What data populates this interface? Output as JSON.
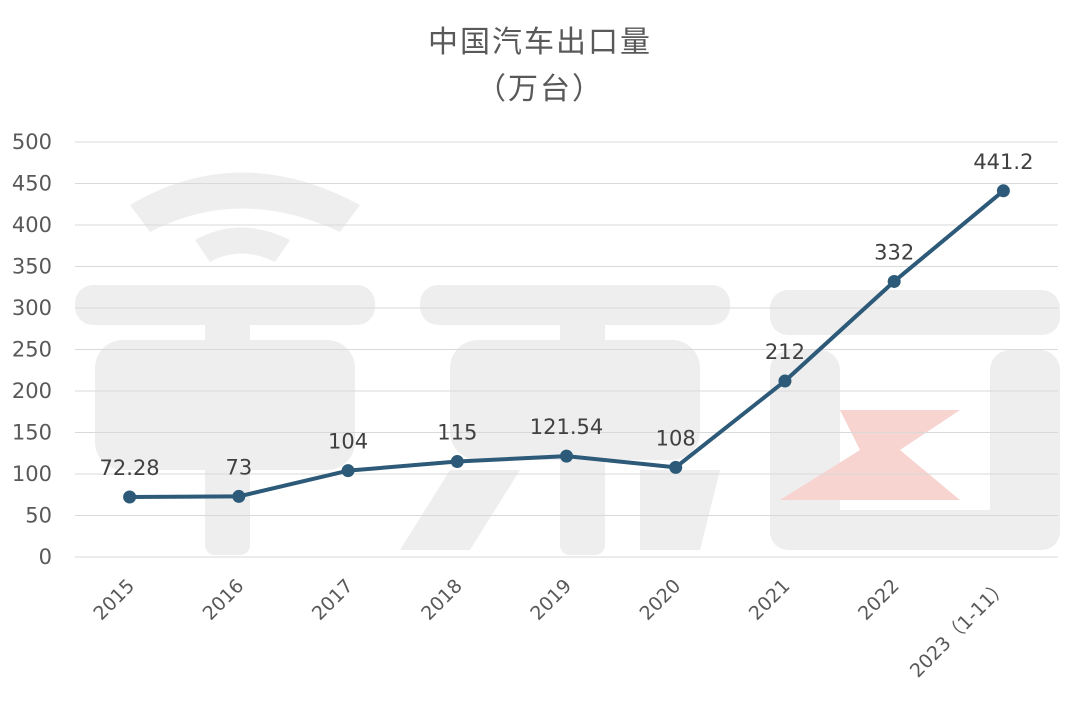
{
  "chart_data": {
    "type": "line",
    "title": "中国汽车出口量",
    "subtitle": "（万台）",
    "categories": [
      "2015",
      "2016",
      "2017",
      "2018",
      "2019",
      "2020",
      "2021",
      "2022",
      "2023（1-11）"
    ],
    "series": [
      {
        "values": [
          72.28,
          73,
          104,
          115,
          121.54,
          108,
          212,
          332,
          441.2
        ],
        "labels": [
          "72.28",
          "73",
          "104",
          "115",
          "121.54",
          "108",
          "212",
          "332",
          "441.2"
        ]
      }
    ],
    "yticks": [
      "0",
      "50",
      "100",
      "150",
      "200",
      "250",
      "300",
      "350",
      "400",
      "450",
      "500"
    ],
    "ylim": [
      0,
      500
    ],
    "grid": true,
    "legend": "none",
    "colors": {
      "line": "#2c5a78",
      "grid": "#d9d9d9",
      "text": "#595959"
    }
  }
}
